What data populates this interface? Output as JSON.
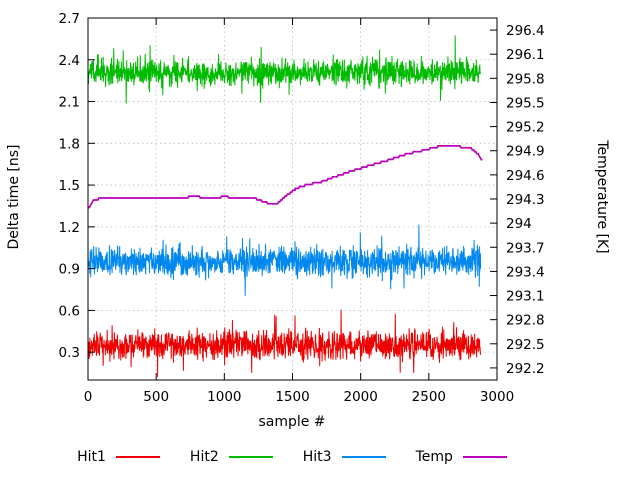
{
  "chart_data": {
    "type": "line",
    "title": "",
    "xlabel": "sample #",
    "ylabel_left": "Delta time [ns]",
    "ylabel_right": "Temperature [K]",
    "xlim": [
      0,
      3000
    ],
    "ylim_left": [
      0.1,
      2.7
    ],
    "ylim_right": [
      292.05,
      296.55
    ],
    "x_ticks": [
      "0",
      "500",
      "1000",
      "1500",
      "2000",
      "2500",
      "3000"
    ],
    "x_tick_values": [
      0,
      500,
      1000,
      1500,
      2000,
      2500,
      3000
    ],
    "left_ticks": [
      "0.3",
      "0.6",
      "0.9",
      "1.2",
      "1.5",
      "1.8",
      "2.1",
      "2.4",
      "2.7"
    ],
    "left_tick_values": [
      0.3,
      0.6,
      0.9,
      1.2,
      1.5,
      1.8,
      2.1,
      2.4,
      2.7
    ],
    "right_ticks": [
      "292.2",
      "292.5",
      "292.8",
      "293.1",
      "293.4",
      "293.7",
      "294",
      "294.3",
      "294.6",
      "294.9",
      "295.2",
      "295.5",
      "295.8",
      "296.1",
      "296.4"
    ],
    "right_tick_values": [
      292.2,
      292.5,
      292.8,
      293.1,
      293.4,
      293.7,
      294.0,
      294.3,
      294.6,
      294.9,
      295.2,
      295.5,
      295.8,
      296.1,
      296.4
    ],
    "grid": true,
    "legend_position": "bottom",
    "series": [
      {
        "name": "Hit1",
        "color": "#ee0000",
        "axis": "left",
        "kind": "noise",
        "mean": 0.35,
        "spread": 0.15,
        "spike_prob": 0.02,
        "spike_amp": 0.18,
        "n": 1450,
        "x_start": 0,
        "x_end": 2880,
        "seed": 101
      },
      {
        "name": "Hit2",
        "color": "#00bb00",
        "axis": "left",
        "kind": "noise",
        "mean": 2.31,
        "spread": 0.14,
        "spike_prob": 0.02,
        "spike_amp": 0.15,
        "n": 1450,
        "x_start": 0,
        "x_end": 2880,
        "seed": 202
      },
      {
        "name": "Hit3",
        "color": "#0088ee",
        "axis": "left",
        "kind": "noise",
        "mean": 0.95,
        "spread": 0.15,
        "spike_prob": 0.02,
        "spike_amp": 0.18,
        "n": 1450,
        "x_start": 0,
        "x_end": 2880,
        "seed": 303
      },
      {
        "name": "Temp",
        "color": "#bb00bb",
        "axis": "right",
        "kind": "steps",
        "quantize": 0.024,
        "points": [
          [
            0,
            294.18
          ],
          [
            40,
            294.28
          ],
          [
            100,
            294.31
          ],
          [
            200,
            294.3
          ],
          [
            300,
            294.32
          ],
          [
            400,
            294.3
          ],
          [
            500,
            294.32
          ],
          [
            600,
            294.3
          ],
          [
            700,
            294.32
          ],
          [
            800,
            294.33
          ],
          [
            900,
            294.3
          ],
          [
            1000,
            294.33
          ],
          [
            1100,
            294.31
          ],
          [
            1200,
            294.32
          ],
          [
            1270,
            294.28
          ],
          [
            1320,
            294.25
          ],
          [
            1390,
            294.24
          ],
          [
            1430,
            294.3
          ],
          [
            1470,
            294.36
          ],
          [
            1520,
            294.42
          ],
          [
            1570,
            294.46
          ],
          [
            1620,
            294.48
          ],
          [
            1670,
            294.5
          ],
          [
            1720,
            294.52
          ],
          [
            1770,
            294.55
          ],
          [
            1820,
            294.58
          ],
          [
            1870,
            294.61
          ],
          [
            1920,
            294.64
          ],
          [
            1970,
            294.67
          ],
          [
            2020,
            294.69
          ],
          [
            2070,
            294.72
          ],
          [
            2120,
            294.74
          ],
          [
            2170,
            294.77
          ],
          [
            2220,
            294.79
          ],
          [
            2270,
            294.82
          ],
          [
            2320,
            294.85
          ],
          [
            2370,
            294.87
          ],
          [
            2420,
            294.89
          ],
          [
            2470,
            294.91
          ],
          [
            2520,
            294.93
          ],
          [
            2570,
            294.95
          ],
          [
            2620,
            294.96
          ],
          [
            2670,
            294.97
          ],
          [
            2720,
            294.95
          ],
          [
            2770,
            294.94
          ],
          [
            2820,
            294.92
          ],
          [
            2860,
            294.86
          ],
          [
            2890,
            294.78
          ]
        ]
      }
    ]
  }
}
